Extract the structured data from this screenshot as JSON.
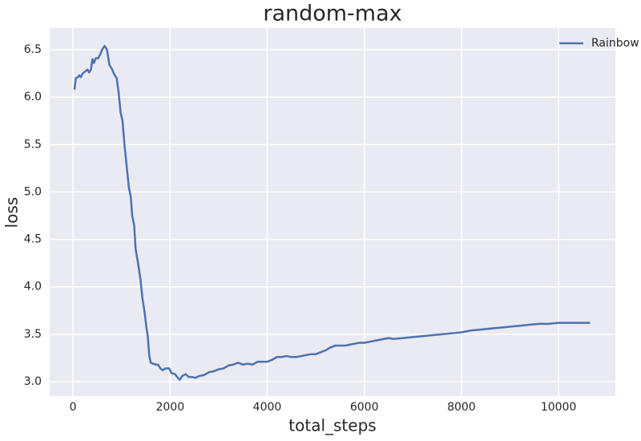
{
  "chart_data": {
    "type": "line",
    "title": "random-max",
    "x_label": "total_steps",
    "y_label": "loss",
    "x": [
      30,
      60,
      100,
      130,
      160,
      200,
      250,
      300,
      330,
      370,
      400,
      430,
      470,
      520,
      560,
      600,
      650,
      700,
      750,
      800,
      850,
      900,
      940,
      980,
      1020,
      1060,
      1100,
      1150,
      1190,
      1220,
      1260,
      1290,
      1340,
      1390,
      1430,
      1470,
      1510,
      1540,
      1570,
      1600,
      1650,
      1700,
      1750,
      1800,
      1850,
      1900,
      1980,
      2030,
      2100,
      2160,
      2200,
      2250,
      2320,
      2380,
      2450,
      2520,
      2600,
      2700,
      2800,
      2900,
      3000,
      3100,
      3200,
      3300,
      3400,
      3500,
      3600,
      3700,
      3800,
      3900,
      4000,
      4100,
      4200,
      4300,
      4400,
      4500,
      4600,
      4700,
      4800,
      4900,
      5000,
      5100,
      5200,
      5300,
      5400,
      5500,
      5600,
      5700,
      5800,
      5900,
      6000,
      6100,
      6200,
      6300,
      6400,
      6500,
      6600,
      6800,
      7000,
      7200,
      7400,
      7600,
      7800,
      8000,
      8200,
      8400,
      8600,
      8800,
      9000,
      9200,
      9400,
      9600,
      9800,
      10000,
      10200,
      10400,
      10600,
      10650
    ],
    "series": [
      {
        "name": "Rainbow",
        "color": "#4c72b0",
        "values": [
          6.08,
          6.2,
          6.21,
          6.23,
          6.21,
          6.25,
          6.27,
          6.29,
          6.26,
          6.29,
          6.4,
          6.36,
          6.41,
          6.41,
          6.45,
          6.5,
          6.54,
          6.5,
          6.34,
          6.3,
          6.24,
          6.2,
          6.05,
          5.84,
          5.75,
          5.5,
          5.3,
          5.05,
          4.95,
          4.75,
          4.65,
          4.4,
          4.25,
          4.08,
          3.88,
          3.75,
          3.58,
          3.48,
          3.28,
          3.2,
          3.19,
          3.18,
          3.18,
          3.14,
          3.12,
          3.14,
          3.14,
          3.09,
          3.08,
          3.04,
          3.02,
          3.06,
          3.08,
          3.05,
          3.05,
          3.04,
          3.06,
          3.07,
          3.1,
          3.11,
          3.13,
          3.14,
          3.17,
          3.18,
          3.2,
          3.18,
          3.19,
          3.18,
          3.21,
          3.21,
          3.21,
          3.23,
          3.26,
          3.26,
          3.27,
          3.26,
          3.26,
          3.27,
          3.28,
          3.29,
          3.29,
          3.31,
          3.33,
          3.36,
          3.38,
          3.38,
          3.38,
          3.39,
          3.4,
          3.41,
          3.41,
          3.42,
          3.43,
          3.44,
          3.45,
          3.46,
          3.45,
          3.46,
          3.47,
          3.48,
          3.49,
          3.5,
          3.51,
          3.52,
          3.54,
          3.55,
          3.56,
          3.57,
          3.58,
          3.59,
          3.6,
          3.61,
          3.61,
          3.62,
          3.62,
          3.62,
          3.62,
          3.62
        ]
      }
    ],
    "xlim": [
      -480,
      11170
    ],
    "ylim": [
      2.848,
      6.728
    ],
    "xticks": [
      0,
      2000,
      4000,
      6000,
      8000,
      10000
    ],
    "yticks": [
      {
        "value": 3,
        "label": "3.0"
      },
      3.5,
      {
        "value": 4,
        "label": "4.0"
      },
      4.5,
      {
        "value": 5,
        "label": "5.0"
      },
      5.5,
      {
        "value": 6,
        "label": "6.0"
      },
      6.5
    ],
    "grid": true,
    "legend": "upper-right"
  }
}
